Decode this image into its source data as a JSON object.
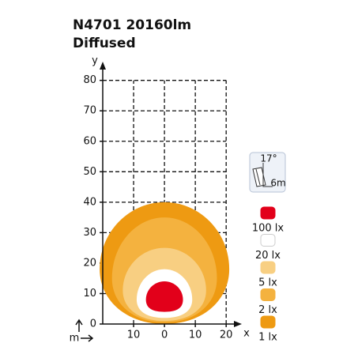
{
  "chart_data": {
    "type": "isolux",
    "title": "N4701 20160lm",
    "subtitle": "Diffused",
    "x_label": "x",
    "y_label": "y",
    "unit_label": "m",
    "xlim": [
      -20,
      22
    ],
    "ylim": [
      0,
      82
    ],
    "xticks": [
      {
        "value": -10,
        "label": "10"
      },
      0,
      10,
      20
    ],
    "yticks": [
      0,
      10,
      20,
      30,
      40,
      50,
      60,
      70,
      80
    ],
    "grid": true,
    "icon": {
      "angle": "17°",
      "distance": "6m"
    },
    "series": [
      {
        "name": "1 lx",
        "color": "#ee9a12",
        "top": 40,
        "bottom": 0,
        "half_width": 21,
        "widest_at": 18
      },
      {
        "name": "2 lx",
        "color": "#f4b23f",
        "top": 35,
        "bottom": 0.5,
        "half_width": 17,
        "widest_at": 15
      },
      {
        "name": "5 lx",
        "color": "#f8cf82",
        "top": 25,
        "bottom": 1,
        "half_width": 13.5,
        "widest_at": 11
      },
      {
        "name": "20 lx",
        "color": "#ffffff",
        "top": 18,
        "bottom": 2,
        "half_width": 9,
        "widest_at": 8
      },
      {
        "name": "100 lx",
        "color": "#e2001a",
        "top": 14,
        "bottom": 4,
        "half_width": 6,
        "widest_at": 8
      }
    ]
  }
}
